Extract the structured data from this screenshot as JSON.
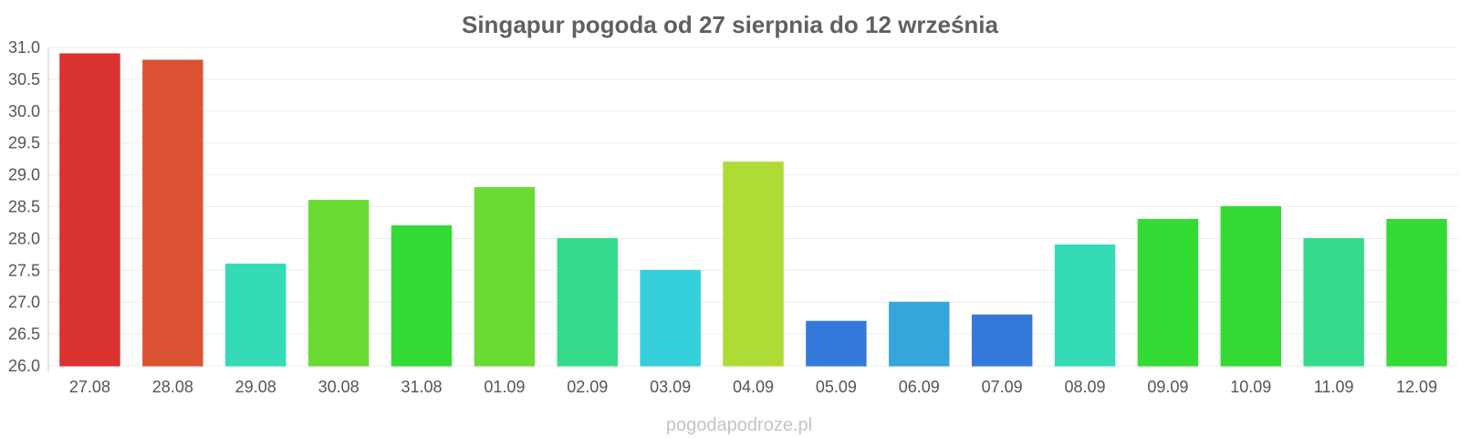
{
  "chart_data": {
    "type": "bar",
    "title": "Singapur pogoda od 27 sierpnia do 12 września",
    "xlabel": "",
    "ylabel": "",
    "ylim": [
      26.0,
      31.0
    ],
    "yticks": [
      "26.0",
      "26.5",
      "27.0",
      "27.5",
      "28.0",
      "28.5",
      "29.0",
      "29.5",
      "30.0",
      "30.5",
      "31.0"
    ],
    "categories": [
      "27.08",
      "28.08",
      "29.08",
      "30.08",
      "31.08",
      "01.09",
      "02.09",
      "03.09",
      "04.09",
      "05.09",
      "06.09",
      "07.09",
      "08.09",
      "09.09",
      "10.09",
      "11.09",
      "12.09"
    ],
    "values": [
      30.9,
      30.8,
      27.6,
      28.6,
      28.2,
      28.8,
      28.0,
      27.5,
      29.2,
      26.7,
      27.0,
      26.8,
      27.9,
      28.3,
      28.5,
      28.0,
      28.3
    ],
    "colors": [
      "#db3232",
      "#db5232",
      "#35dbb7",
      "#6adb35",
      "#35db35",
      "#6adb35",
      "#35db8a",
      "#35cedb",
      "#afdb35",
      "#3578db",
      "#35a6db",
      "#3578db",
      "#35dbb7",
      "#35db35",
      "#35db35",
      "#35db8a",
      "#35db35"
    ],
    "grid": true,
    "legend": "none"
  },
  "watermark": "pogodapodroze.pl"
}
